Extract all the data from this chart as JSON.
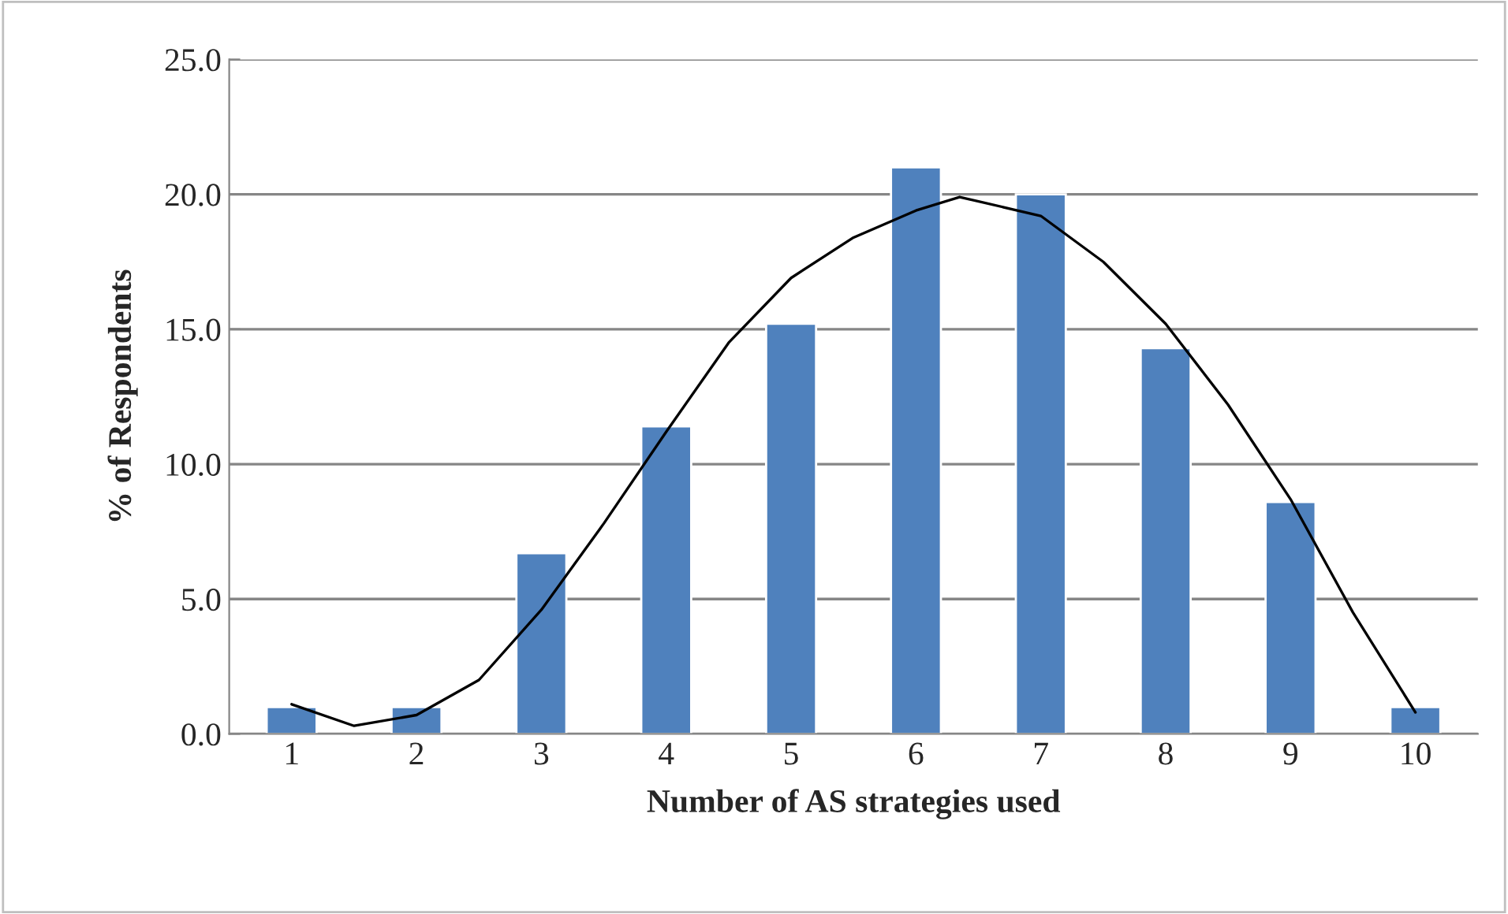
{
  "chart_data": {
    "type": "bar",
    "xlabel": "Number of AS strategies used",
    "ylabel": "% of Respondents",
    "x": [
      1,
      2,
      3,
      4,
      5,
      6,
      7,
      8,
      9,
      10
    ],
    "xlim": [
      0.5,
      10.5
    ],
    "xticks": [
      1,
      2,
      3,
      4,
      5,
      6,
      7,
      8,
      9,
      10
    ],
    "ylim": [
      0,
      25
    ],
    "yticks": [
      {
        "value": 0,
        "label": "0.0"
      },
      {
        "value": 5,
        "label": "5.0"
      },
      {
        "value": 10,
        "label": "10.0"
      },
      {
        "value": 15,
        "label": "15.0"
      },
      {
        "value": 20,
        "label": "20.0"
      },
      {
        "value": 25,
        "label": "25.0"
      }
    ],
    "grid": "y",
    "series": [
      {
        "color": "#4f81bd",
        "values": [
          1.0,
          1.0,
          6.7,
          11.4,
          15.2,
          21.0,
          20.0,
          14.3,
          8.6,
          1.0
        ]
      },
      {
        "type": "line",
        "color": "#000000",
        "x": [
          1,
          1.5,
          2,
          2.5,
          3,
          3.5,
          4,
          4.5,
          5,
          5.5,
          6,
          6.35,
          7,
          7.5,
          8,
          8.5,
          9,
          9.5,
          10
        ],
        "values": [
          1.1,
          0.3,
          0.7,
          2.0,
          4.6,
          7.8,
          11.2,
          14.5,
          16.9,
          18.4,
          19.4,
          19.9,
          19.2,
          17.5,
          15.2,
          12.2,
          8.7,
          4.5,
          0.8
        ]
      }
    ]
  }
}
